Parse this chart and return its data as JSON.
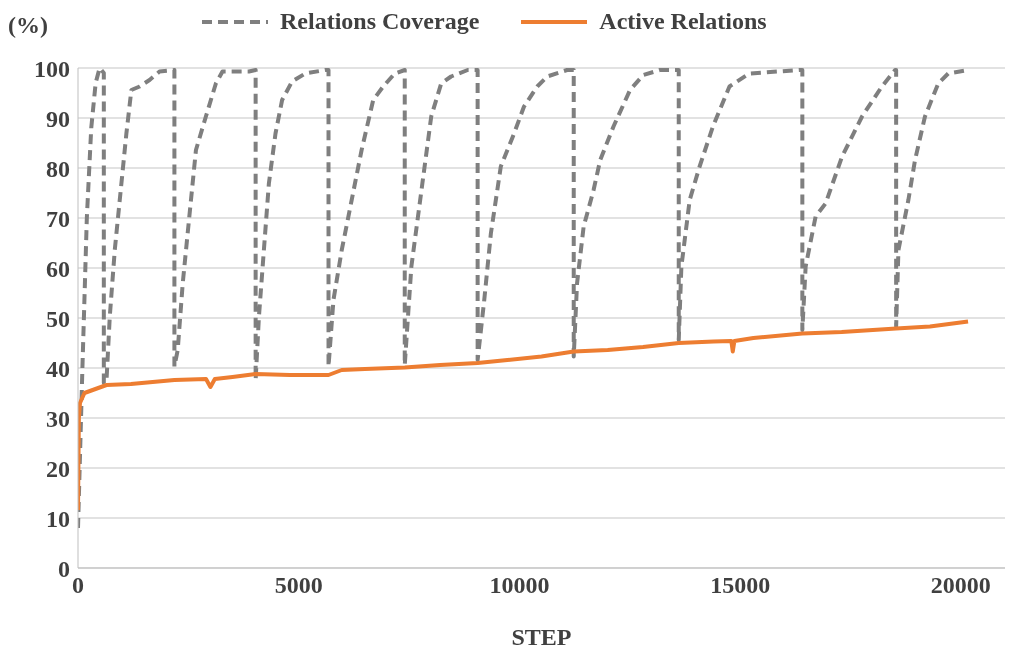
{
  "chart_data": {
    "type": "line",
    "xlabel": "STEP",
    "ylabel": "(%)",
    "xlim": [
      0,
      21000
    ],
    "xticks": [
      0,
      5000,
      10000,
      15000,
      20000
    ],
    "ylim": [
      0,
      100
    ],
    "yticks": [
      0,
      10,
      20,
      30,
      40,
      50,
      60,
      70,
      80,
      90,
      100
    ],
    "grid": "y",
    "legend": "top",
    "marker": "none",
    "series": [
      {
        "name": "Relations Coverage",
        "color": "#7f7f7f",
        "line_style": "dashed",
        "x": [
          0,
          100,
          200,
          300,
          400,
          490,
          585,
          585,
          646,
          720,
          833,
          983,
          1096,
          1209,
          1396,
          1621,
          1847,
          2184,
          2184,
          2259,
          2372,
          2522,
          2672,
          2897,
          3123,
          3273,
          3874,
          4024,
          4024,
          4099,
          4211,
          4324,
          4474,
          4624,
          4849,
          5150,
          5600,
          5675,
          5675,
          5787,
          5975,
          6200,
          6425,
          6688,
          6914,
          7176,
          7402,
          7402,
          7552,
          7702,
          7852,
          8002,
          8227,
          8452,
          8828,
          9053,
          9053,
          9203,
          9353,
          9578,
          9878,
          10104,
          10404,
          10629,
          11080,
          11230,
          11230,
          11305,
          11455,
          11680,
          11830,
          12131,
          12506,
          12806,
          13181,
          13609,
          13609,
          13669,
          13857,
          14082,
          14383,
          14758,
          15208,
          16334,
          16409,
          16409,
          16484,
          16710,
          16935,
          17310,
          17761,
          18211,
          18511,
          18534,
          18534,
          18586,
          18811,
          18962,
          19187,
          19488,
          19713,
          20163
        ],
        "values": [
          8,
          40,
          70,
          88,
          97,
          100,
          99,
          37,
          37.6,
          50.3,
          63.6,
          76.9,
          86.9,
          95.6,
          96.3,
          97.6,
          99.3,
          99.6,
          40.3,
          43.6,
          56.9,
          70.3,
          83.6,
          90.3,
          96.9,
          99.3,
          99.3,
          99.6,
          37.6,
          50.3,
          63.6,
          76.9,
          86.9,
          93.6,
          97.3,
          98.9,
          99.6,
          99.6,
          40.3,
          53.6,
          63.6,
          73.6,
          83.6,
          93.6,
          96.3,
          98.9,
          99.6,
          40.6,
          60.3,
          70.3,
          80.3,
          90.3,
          96.9,
          98.3,
          99.6,
          99.6,
          41.6,
          53.6,
          66.9,
          80.3,
          86.9,
          92.3,
          96.3,
          98.3,
          99.6,
          99.6,
          42.3,
          56.9,
          68.3,
          75.6,
          81.6,
          88.3,
          95.6,
          98.6,
          99.6,
          99.6,
          45.6,
          60.3,
          73.6,
          80.3,
          88.3,
          96.3,
          98.9,
          99.6,
          99.6,
          47.6,
          60.3,
          70.3,
          72.9,
          82.3,
          90.3,
          96.3,
          99.6,
          99.6,
          48.3,
          63.6,
          73.6,
          81.6,
          90.3,
          96.9,
          98.9,
          99.6
        ]
      },
      {
        "name": "Active Relations",
        "color": "#ed7d31",
        "line_style": "solid",
        "x": [
          0,
          20,
          45,
          146,
          646,
          1200,
          2184,
          2900,
          3000,
          3100,
          3500,
          4024,
          4800,
          5675,
          5975,
          6500,
          7402,
          8200,
          9053,
          9729,
          10500,
          11230,
          12000,
          12800,
          13609,
          14400,
          14800,
          14833,
          14870,
          15300,
          16409,
          17300,
          18534,
          19300,
          20163
        ],
        "values": [
          11.6,
          30,
          33,
          35,
          36.6,
          36.8,
          37.6,
          37.8,
          36.2,
          37.8,
          38.2,
          38.8,
          38.6,
          38.6,
          39.6,
          39.8,
          40.1,
          40.6,
          41,
          41.6,
          42.3,
          43.3,
          43.6,
          44.2,
          45,
          45.3,
          45.4,
          43.3,
          45.4,
          46,
          46.9,
          47.2,
          47.9,
          48.3,
          49.3
        ]
      }
    ]
  }
}
